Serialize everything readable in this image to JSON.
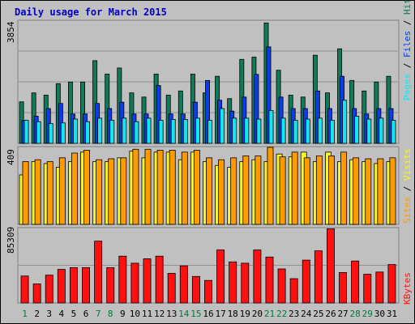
{
  "title": "Daily usage for March 2015",
  "chart_data": {
    "type": "bar",
    "title": "Daily usage for March 2015",
    "categories": [
      "1",
      "2",
      "3",
      "4",
      "5",
      "6",
      "7",
      "8",
      "9",
      "10",
      "11",
      "12",
      "13",
      "14",
      "15",
      "16",
      "17",
      "18",
      "19",
      "20",
      "21",
      "22",
      "23",
      "24",
      "25",
      "26",
      "27",
      "28",
      "29",
      "30",
      "31"
    ],
    "weekend_days": [
      "1",
      "7",
      "8",
      "14",
      "15",
      "21",
      "22",
      "28",
      "29"
    ],
    "panels": [
      {
        "name": "pages-files-hits",
        "ymax": 3854,
        "ymax_label": "3854",
        "ylim": [
          0,
          3854
        ],
        "legend": [
          "Pages",
          "Files",
          "Hits"
        ],
        "series": [
          {
            "name": "Hits",
            "color": "#117a5b",
            "values": [
              1300,
              1580,
              1510,
              1870,
              1920,
              1920,
              2590,
              2170,
              2360,
              1580,
              1450,
              2170,
              1510,
              1640,
              2170,
              1580,
              2100,
              1400,
              2630,
              2700,
              3770,
              2290,
              1510,
              1450,
              2760,
              1580,
              2960,
              1970,
              1640,
              1920,
              2100
            ]
          },
          {
            "name": "Files",
            "color": "#0a3ee8",
            "values": [
              720,
              850,
              1090,
              1250,
              920,
              920,
              1250,
              1090,
              1290,
              920,
              920,
              1810,
              920,
              920,
              1290,
              1970,
              1350,
              1010,
              1450,
              2160,
              3020,
              1450,
              1090,
              1090,
              1640,
              1090,
              2100,
              1090,
              920,
              1090,
              1090
            ]
          },
          {
            "name": "Pages",
            "color": "#12e6f0",
            "values": [
              720,
              680,
              620,
              640,
              760,
              680,
              790,
              720,
              790,
              680,
              790,
              720,
              750,
              750,
              790,
              720,
              1090,
              790,
              790,
              760,
              1030,
              790,
              720,
              760,
              790,
              720,
              1350,
              850,
              760,
              790,
              720
            ]
          }
        ]
      },
      {
        "name": "sites-visits",
        "ymax": 409,
        "ymax_label": "409",
        "ylim": [
          0,
          409
        ],
        "legend": [
          "Sites",
          "Visits"
        ],
        "series": [
          {
            "name": "Visits",
            "color": "#f5f52a",
            "values": [
              260,
              330,
              320,
              300,
              330,
              380,
              330,
              330,
              350,
              385,
              350,
              380,
              380,
              340,
              380,
              330,
              310,
              300,
              330,
              340,
              330,
              370,
              355,
              380,
              330,
              380,
              330,
              340,
              330,
              320,
              330
            ]
          },
          {
            "name": "Sites",
            "color": "#ff9a00",
            "values": [
              330,
              340,
              330,
              350,
              375,
              390,
              340,
              345,
              350,
              395,
              395,
              390,
              390,
              380,
              390,
              350,
              340,
              350,
              360,
              360,
              405,
              355,
              380,
              350,
              360,
              360,
              380,
              350,
              345,
              345,
              350
            ]
          }
        ]
      },
      {
        "name": "kbytes",
        "ymax": 85309,
        "ymax_label": "85309",
        "ylim": [
          0,
          85309
        ],
        "legend": [
          "KBytes"
        ],
        "series": [
          {
            "name": "KBytes",
            "color": "#ff1010",
            "values": [
              30500,
              21500,
              31500,
              38000,
              40000,
              40000,
              70000,
              40000,
              53000,
              45000,
              50000,
              53000,
              33500,
              42000,
              30000,
              25500,
              60000,
              46500,
              45000,
              60000,
              52000,
              38500,
              27500,
              48500,
              59000,
              84000,
              34500,
              47500,
              32500,
              35000,
              43500
            ]
          }
        ]
      }
    ]
  },
  "colors": {
    "background": "#c0c0c0",
    "title": "#0000c0",
    "weekday_label": "#000000",
    "weekend_label": "#007a3c",
    "grid": "#808080",
    "pages": "#12e6f0",
    "files": "#0a3ee8",
    "hits": "#117a5b",
    "visits": "#f5f52a",
    "sites": "#ff9a00",
    "kbytes": "#ff1010"
  }
}
